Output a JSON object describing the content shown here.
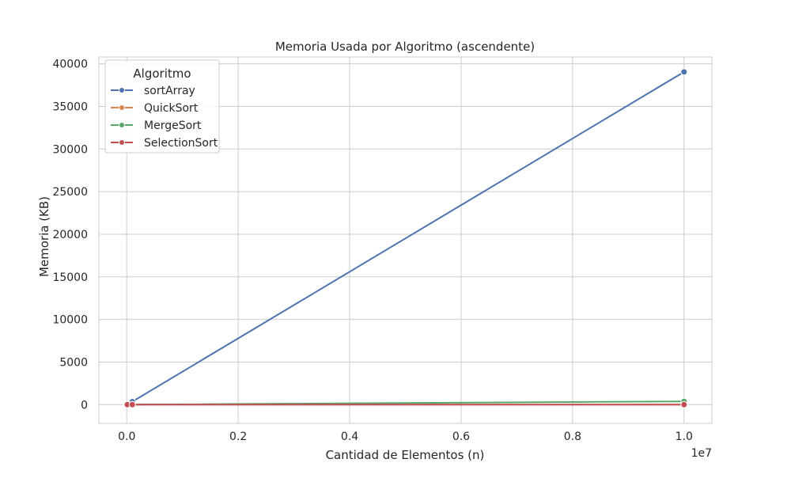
{
  "chart_data": {
    "type": "line",
    "title": "Memoria Usada por Algoritmo (ascendente)",
    "xlabel": "Cantidad de Elementos (n)",
    "ylabel": "Memoria (KB)",
    "x_offset_label": "1e7",
    "xlim": [
      -0.05,
      1.05
    ],
    "ylim": [
      -2200,
      40800
    ],
    "x_ticks": [
      0.0,
      0.2,
      0.4,
      0.6,
      0.8,
      1.0
    ],
    "x_tick_labels": [
      "0.0",
      "0.2",
      "0.4",
      "0.6",
      "0.8",
      "1.0"
    ],
    "y_ticks": [
      0,
      5000,
      10000,
      15000,
      20000,
      25000,
      30000,
      35000,
      40000
    ],
    "y_tick_labels": [
      "0",
      "5000",
      "10000",
      "15000",
      "20000",
      "25000",
      "30000",
      "35000",
      "40000"
    ],
    "grid": true,
    "legend": {
      "title": "Algoritmo",
      "position": "top-left"
    },
    "series": [
      {
        "name": "sortArray",
        "color": "#4c72b0",
        "x": [
          0.0001,
          0.001,
          0.01,
          1.0
        ],
        "y": [
          0,
          5,
          350,
          39050
        ]
      },
      {
        "name": "QuickSort",
        "color": "#dd8452",
        "x": [
          0.0001,
          0.001,
          0.01,
          1.0
        ],
        "y": [
          0,
          0,
          2,
          5
        ]
      },
      {
        "name": "MergeSort",
        "color": "#55a868",
        "x": [
          0.0001,
          0.001,
          0.01,
          1.0
        ],
        "y": [
          0,
          1,
          10,
          380
        ]
      },
      {
        "name": "SelectionSort",
        "color": "#c44e52",
        "x": [
          0.0001,
          0.001,
          0.01,
          1.0
        ],
        "y": [
          0,
          0,
          0,
          0
        ]
      }
    ]
  }
}
